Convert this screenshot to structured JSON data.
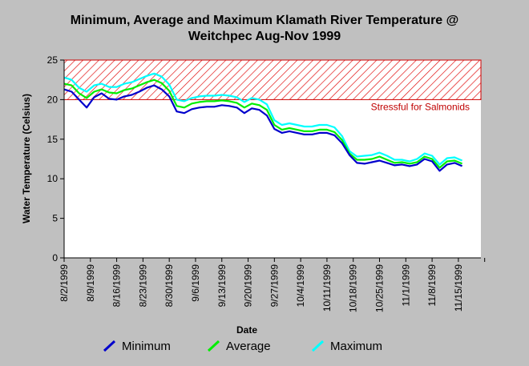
{
  "chart_data": {
    "type": "line",
    "title_line1": "Minimum, Average and Maximum Klamath River Temperature @",
    "title_line2": "Weitchpec Aug-Nov 1999",
    "xlabel": "Date",
    "ylabel": "Water Temperature (Celsius)",
    "ylim": [
      0,
      25
    ],
    "yticks": [
      0,
      5,
      10,
      15,
      20,
      25
    ],
    "xlim": [
      "1999-08-02",
      "1999-11-21"
    ],
    "xtick_labels": [
      "8/2/1999",
      "8/9/1999",
      "8/16/1999",
      "8/23/1999",
      "8/30/1999",
      "9/6/1999",
      "9/13/1999",
      "9/20/1999",
      "9/27/1999",
      "10/4/1999",
      "10/11/1999",
      "10/18/1999",
      "10/25/1999",
      "11/1/1999",
      "11/8/1999",
      "11/15/1999"
    ],
    "threshold": {
      "value": 20,
      "label": "Stressful for Salmonids",
      "color": "#cc0000"
    },
    "legend_position": "bottom",
    "series": [
      {
        "name": "Minimum",
        "color": "#0000cc",
        "x": [
          "1999-08-02",
          "1999-08-04",
          "1999-08-06",
          "1999-08-08",
          "1999-08-10",
          "1999-08-12",
          "1999-08-14",
          "1999-08-16",
          "1999-08-18",
          "1999-08-20",
          "1999-08-22",
          "1999-08-24",
          "1999-08-26",
          "1999-08-28",
          "1999-08-30",
          "1999-09-01",
          "1999-09-03",
          "1999-09-05",
          "1999-09-07",
          "1999-09-09",
          "1999-09-11",
          "1999-09-13",
          "1999-09-15",
          "1999-09-17",
          "1999-09-19",
          "1999-09-21",
          "1999-09-23",
          "1999-09-25",
          "1999-09-27",
          "1999-09-29",
          "1999-10-01",
          "1999-10-03",
          "1999-10-05",
          "1999-10-07",
          "1999-10-09",
          "1999-10-11",
          "1999-10-13",
          "1999-10-15",
          "1999-10-17",
          "1999-10-19",
          "1999-10-21",
          "1999-10-23",
          "1999-10-25",
          "1999-10-27",
          "1999-10-29",
          "1999-10-31",
          "1999-11-02",
          "1999-11-04",
          "1999-11-06",
          "1999-11-08",
          "1999-11-10",
          "1999-11-12",
          "1999-11-14",
          "1999-11-16"
        ],
        "y": [
          21.3,
          21.0,
          20.0,
          19.0,
          20.3,
          20.8,
          20.1,
          20.0,
          20.4,
          20.6,
          21.0,
          21.5,
          21.8,
          21.3,
          20.4,
          18.5,
          18.3,
          18.8,
          19.0,
          19.1,
          19.1,
          19.3,
          19.2,
          19.0,
          18.3,
          18.9,
          18.7,
          18.0,
          16.3,
          15.8,
          16.0,
          15.8,
          15.6,
          15.6,
          15.8,
          15.8,
          15.5,
          14.5,
          13.0,
          12.0,
          11.9,
          12.1,
          12.3,
          12.0,
          11.7,
          11.8,
          11.6,
          11.8,
          12.5,
          12.2,
          11.0,
          11.8,
          12.0,
          11.6
        ]
      },
      {
        "name": "Average",
        "color": "#00ee00",
        "x": [
          "1999-08-02",
          "1999-08-04",
          "1999-08-06",
          "1999-08-08",
          "1999-08-10",
          "1999-08-12",
          "1999-08-14",
          "1999-08-16",
          "1999-08-18",
          "1999-08-20",
          "1999-08-22",
          "1999-08-24",
          "1999-08-26",
          "1999-08-28",
          "1999-08-30",
          "1999-09-01",
          "1999-09-03",
          "1999-09-05",
          "1999-09-07",
          "1999-09-09",
          "1999-09-11",
          "1999-09-13",
          "1999-09-15",
          "1999-09-17",
          "1999-09-19",
          "1999-09-21",
          "1999-09-23",
          "1999-09-25",
          "1999-09-27",
          "1999-09-29",
          "1999-10-01",
          "1999-10-03",
          "1999-10-05",
          "1999-10-07",
          "1999-10-09",
          "1999-10-11",
          "1999-10-13",
          "1999-10-15",
          "1999-10-17",
          "1999-10-19",
          "1999-10-21",
          "1999-10-23",
          "1999-10-25",
          "1999-10-27",
          "1999-10-29",
          "1999-10-31",
          "1999-11-02",
          "1999-11-04",
          "1999-11-06",
          "1999-11-08",
          "1999-11-10",
          "1999-11-12",
          "1999-11-14",
          "1999-11-16"
        ],
        "y": [
          22.0,
          21.8,
          20.8,
          20.2,
          21.0,
          21.3,
          20.9,
          20.8,
          21.2,
          21.4,
          21.8,
          22.2,
          22.5,
          22.1,
          21.1,
          19.2,
          19.0,
          19.5,
          19.7,
          19.8,
          19.8,
          19.9,
          19.8,
          19.6,
          19.0,
          19.5,
          19.3,
          18.7,
          16.8,
          16.2,
          16.4,
          16.2,
          16.0,
          16.0,
          16.2,
          16.2,
          15.9,
          14.9,
          13.2,
          12.4,
          12.4,
          12.5,
          12.8,
          12.4,
          12.0,
          12.1,
          11.9,
          12.1,
          12.8,
          12.5,
          11.4,
          12.2,
          12.3,
          11.9
        ]
      },
      {
        "name": "Maximum",
        "color": "#00ffff",
        "x": [
          "1999-08-02",
          "1999-08-04",
          "1999-08-06",
          "1999-08-08",
          "1999-08-10",
          "1999-08-12",
          "1999-08-14",
          "1999-08-16",
          "1999-08-18",
          "1999-08-20",
          "1999-08-22",
          "1999-08-24",
          "1999-08-26",
          "1999-08-28",
          "1999-08-30",
          "1999-09-01",
          "1999-09-03",
          "1999-09-05",
          "1999-09-07",
          "1999-09-09",
          "1999-09-11",
          "1999-09-13",
          "1999-09-15",
          "1999-09-17",
          "1999-09-19",
          "1999-09-21",
          "1999-09-23",
          "1999-09-25",
          "1999-09-27",
          "1999-09-29",
          "1999-10-01",
          "1999-10-03",
          "1999-10-05",
          "1999-10-07",
          "1999-10-09",
          "1999-10-11",
          "1999-10-13",
          "1999-10-15",
          "1999-10-17",
          "1999-10-19",
          "1999-10-21",
          "1999-10-23",
          "1999-10-25",
          "1999-10-27",
          "1999-10-29",
          "1999-10-31",
          "1999-11-02",
          "1999-11-04",
          "1999-11-06",
          "1999-11-08",
          "1999-11-10",
          "1999-11-12",
          "1999-11-14",
          "1999-11-16"
        ],
        "y": [
          22.8,
          22.5,
          21.5,
          21.0,
          21.8,
          22.0,
          21.6,
          21.6,
          22.0,
          22.2,
          22.6,
          23.0,
          23.3,
          22.9,
          21.9,
          20.0,
          19.8,
          20.2,
          20.4,
          20.5,
          20.5,
          20.6,
          20.5,
          20.3,
          19.7,
          20.2,
          20.0,
          19.4,
          17.4,
          16.8,
          17.0,
          16.8,
          16.6,
          16.6,
          16.8,
          16.8,
          16.5,
          15.4,
          13.5,
          12.8,
          12.9,
          13.0,
          13.3,
          12.9,
          12.4,
          12.4,
          12.2,
          12.5,
          13.2,
          12.9,
          11.8,
          12.6,
          12.7,
          12.3
        ]
      }
    ]
  }
}
